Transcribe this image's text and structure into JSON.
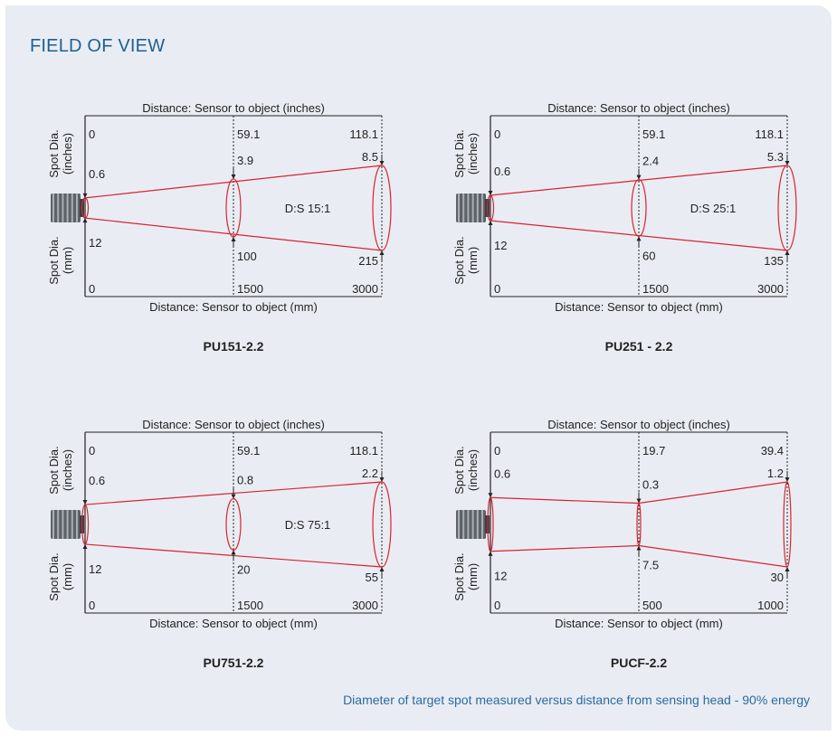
{
  "title": "FIELD OF VIEW",
  "footnote": "Diameter of target spot measured versus distance from sensing head - 90% energy",
  "common": {
    "top_axis_label": "Distance: Sensor to object (inches)",
    "bottom_axis_label": "Distance: Sensor to object (mm)",
    "y_label_upper_line1": "Spot Dia.",
    "y_label_upper_line2": "(inches)",
    "y_label_lower_line1": "Spot Dia.",
    "y_label_lower_line2": "(mm)",
    "beam_color": "#d9232f",
    "line_color": "#222222"
  },
  "diagrams": [
    {
      "model": "PU151-2.2",
      "ratio": "D:S 15:1",
      "shape": "cone",
      "in_ticks": [
        "0",
        "59.1",
        "118.1"
      ],
      "mm_ticks": [
        "0",
        "1500",
        "3000"
      ],
      "mm_distances": [
        0,
        1500,
        3000
      ],
      "spot_in": [
        "0.6",
        "3.9",
        "8.5"
      ],
      "spot_mm": [
        "12",
        "100",
        "215"
      ],
      "spot_mm_values": [
        12,
        100,
        215
      ]
    },
    {
      "model": "PU251 - 2.2",
      "ratio": "D:S 25:1",
      "shape": "cone",
      "in_ticks": [
        "0",
        "59.1",
        "118.1"
      ],
      "mm_ticks": [
        "0",
        "1500",
        "3000"
      ],
      "mm_distances": [
        0,
        1500,
        3000
      ],
      "spot_in": [
        "0.6",
        "2.4",
        "5.3"
      ],
      "spot_mm": [
        "12",
        "60",
        "135"
      ],
      "spot_mm_values": [
        12,
        60,
        135
      ]
    },
    {
      "model": "PU751-2.2",
      "ratio": "D:S 75:1",
      "shape": "cone",
      "in_ticks": [
        "0",
        "59.1",
        "118.1"
      ],
      "mm_ticks": [
        "0",
        "1500",
        "3000"
      ],
      "mm_distances": [
        0,
        1500,
        3000
      ],
      "spot_in": [
        "0.6",
        "0.8",
        "2.2"
      ],
      "spot_mm": [
        "12",
        "20",
        "55"
      ],
      "spot_mm_values": [
        12,
        20,
        55
      ]
    },
    {
      "model": "PUCF-2.2",
      "ratio": "",
      "shape": "focus",
      "in_ticks": [
        "0",
        "19.7",
        "39.4"
      ],
      "mm_ticks": [
        "0",
        "500",
        "1000"
      ],
      "mm_distances": [
        0,
        500,
        1000
      ],
      "spot_in": [
        "0.6",
        "0.3",
        "1.2"
      ],
      "spot_mm": [
        "12",
        "7.5",
        "30"
      ],
      "spot_mm_values": [
        12,
        7.5,
        30
      ]
    }
  ]
}
